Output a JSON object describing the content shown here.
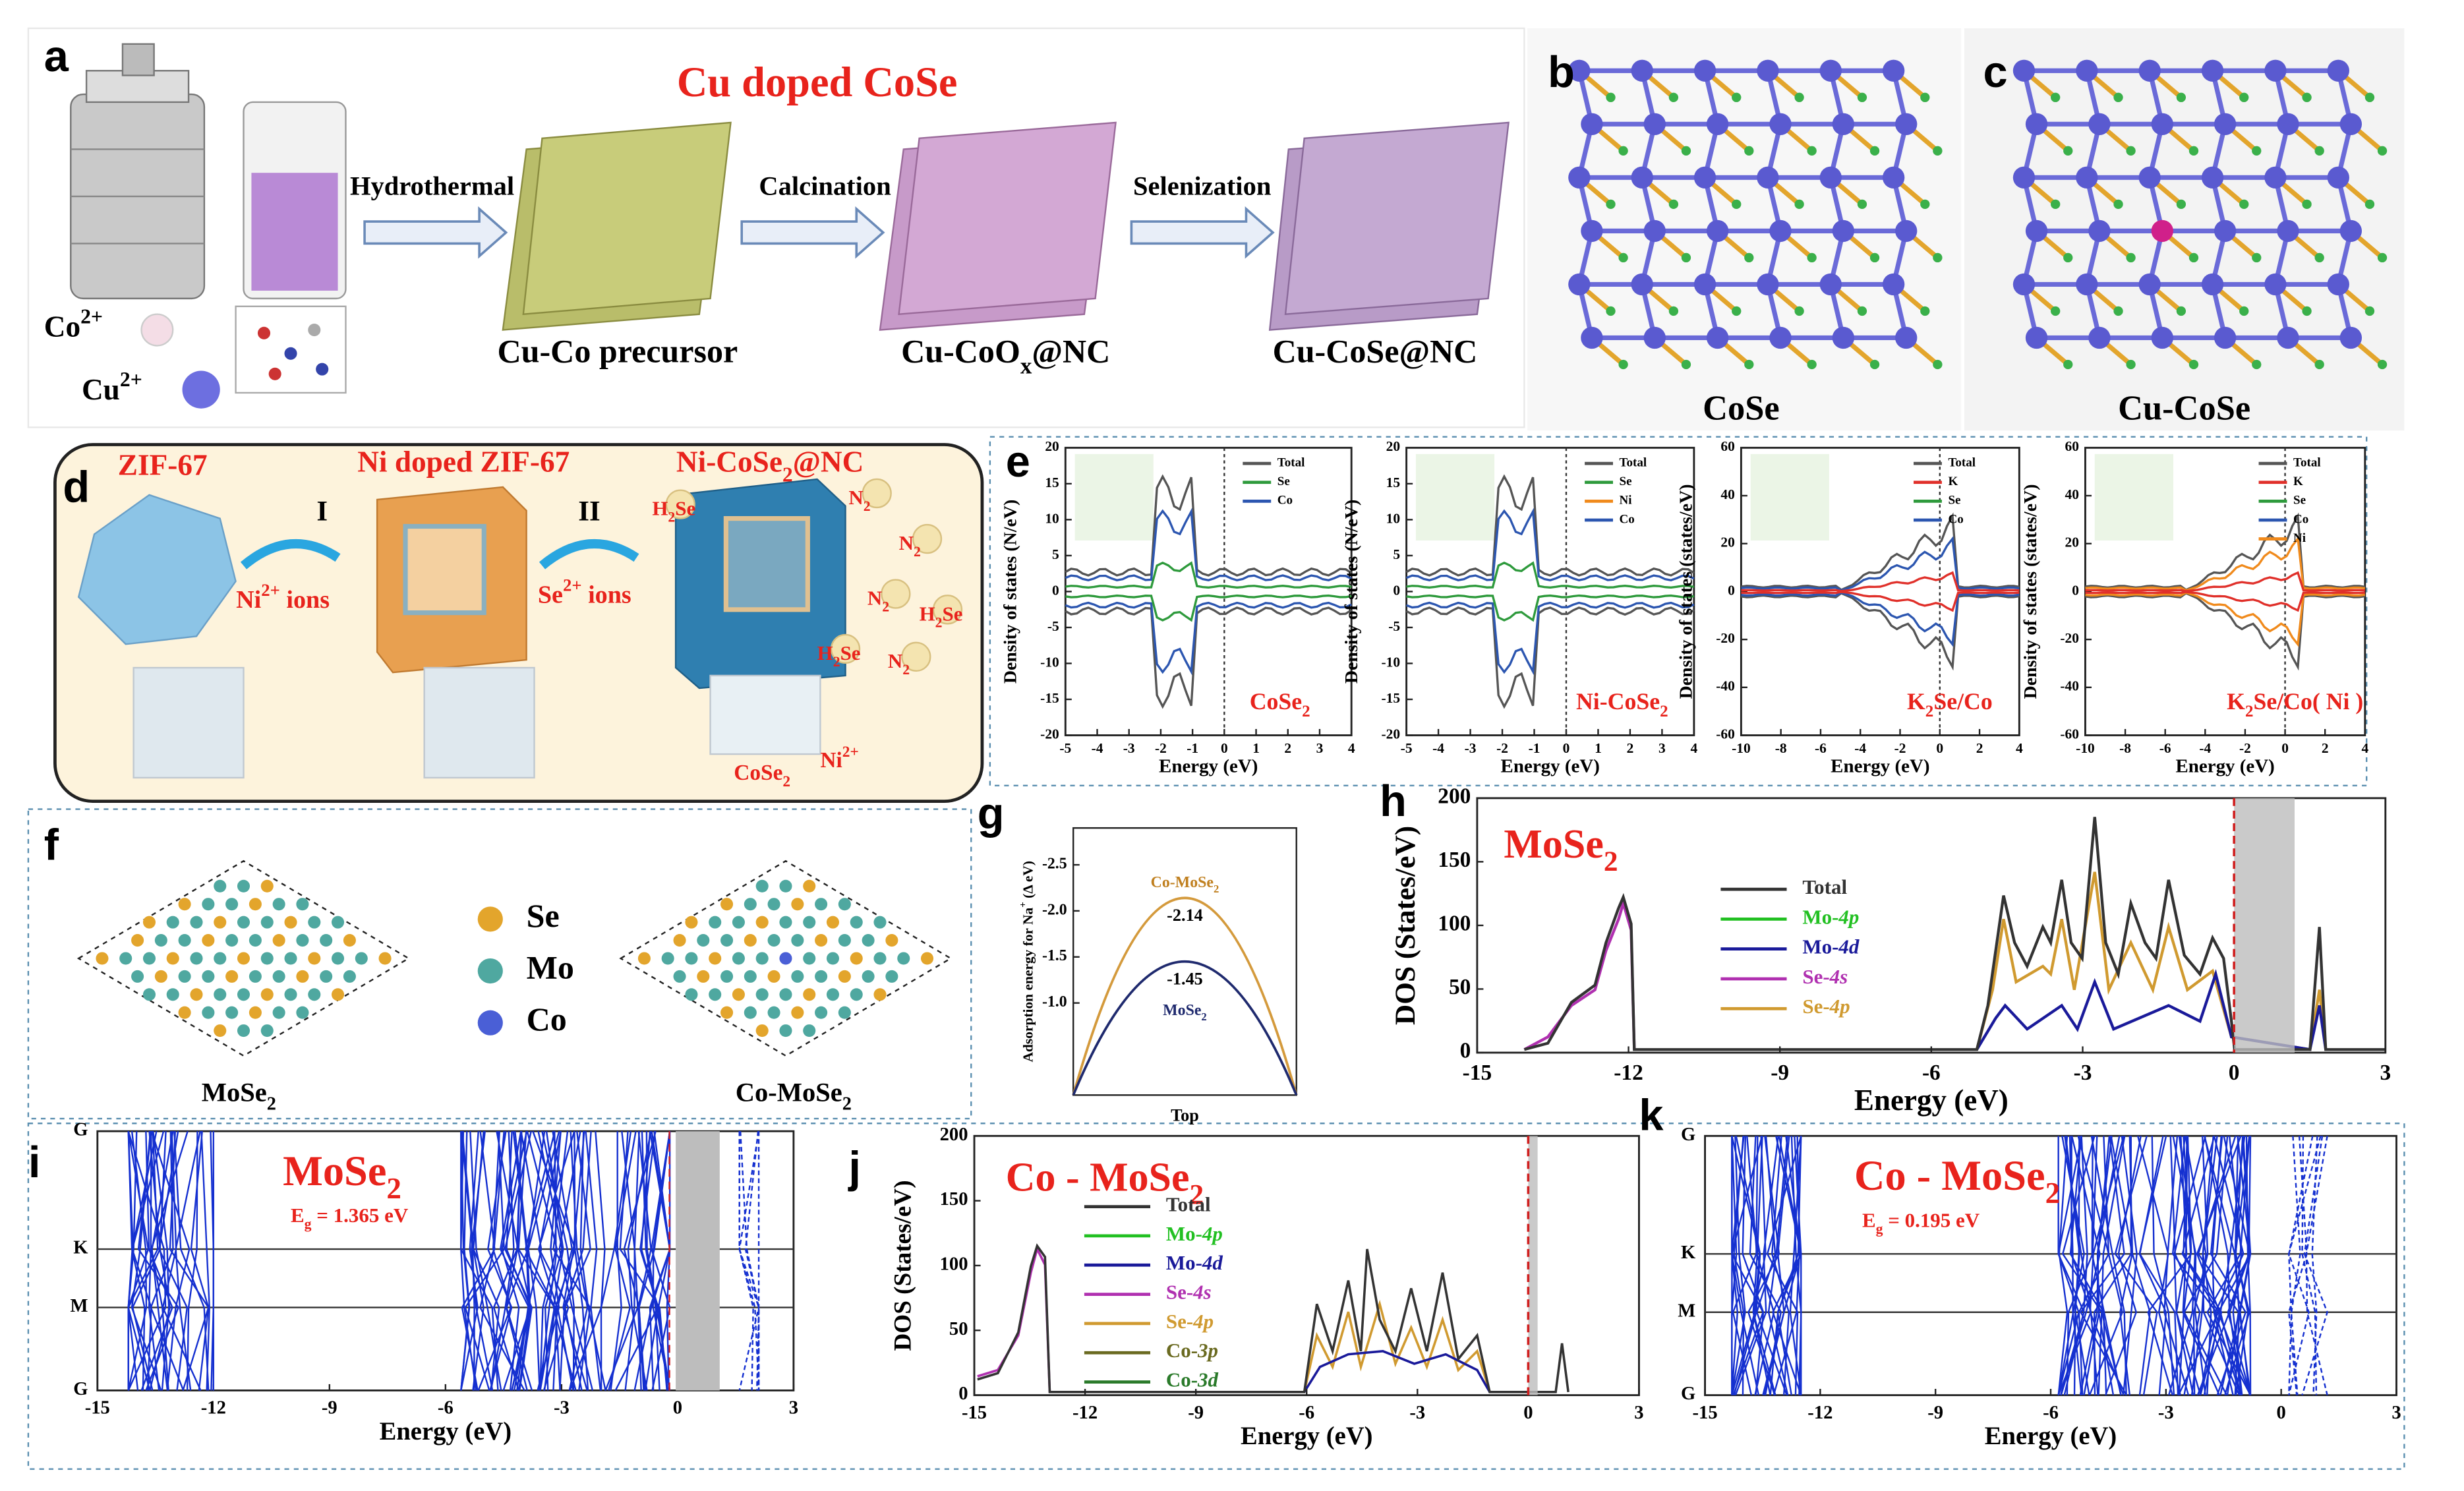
{
  "a": {
    "label": "a",
    "title": "Cu doped CoSe",
    "steps": [
      "Hydrothermal",
      "Calcination",
      "Selenization"
    ],
    "products": [
      [
        {
          "t": "Cu-Co precursor"
        }
      ],
      [
        {
          "t": "Cu-CoO"
        },
        {
          "t": "x",
          "s": "sub"
        },
        {
          "t": "@NC"
        }
      ],
      [
        {
          "t": "Cu-CoSe@NC"
        }
      ]
    ],
    "ions": [
      [
        {
          "t": "Co"
        },
        {
          "t": "2+",
          "s": "sup"
        }
      ],
      [
        {
          "t": "Cu"
        },
        {
          "t": "2+",
          "s": "sup"
        }
      ]
    ]
  },
  "b": {
    "label": "b",
    "caption": "CoSe"
  },
  "c": {
    "label": "c",
    "caption": "Cu-CoSe"
  },
  "d": {
    "label": "d",
    "stages": [
      [
        {
          "t": "ZIF-67"
        }
      ],
      [
        {
          "t": "Ni doped ZIF-67"
        }
      ],
      [
        {
          "t": "Ni-CoSe"
        },
        {
          "t": "2",
          "s": "sub"
        },
        {
          "t": "@NC"
        }
      ]
    ],
    "steps": [
      "I",
      "II"
    ],
    "ions": [
      [
        {
          "t": "Ni"
        },
        {
          "t": "2+",
          "s": "sup"
        },
        {
          "t": " ions"
        }
      ],
      [
        {
          "t": "Se"
        },
        {
          "t": "2+",
          "s": "sup"
        },
        {
          "t": " ions"
        }
      ]
    ],
    "gases": [
      [
        {
          "t": "H"
        },
        {
          "t": "2",
          "s": "sub"
        },
        {
          "t": "Se"
        }
      ],
      [
        {
          "t": "N"
        },
        {
          "t": "2",
          "s": "sub"
        }
      ],
      [
        {
          "t": "N"
        },
        {
          "t": "2",
          "s": "sub"
        }
      ],
      [
        {
          "t": "N"
        },
        {
          "t": "2",
          "s": "sub"
        }
      ],
      [
        {
          "t": "H"
        },
        {
          "t": "2",
          "s": "sub"
        },
        {
          "t": "Se"
        }
      ],
      [
        {
          "t": "H"
        },
        {
          "t": "2",
          "s": "sub"
        },
        {
          "t": "Se"
        }
      ],
      [
        {
          "t": "N"
        },
        {
          "t": "2",
          "s": "sub"
        }
      ]
    ],
    "inset": [
      {
        "t": "CoSe"
      },
      {
        "t": "2",
        "s": "sub"
      }
    ],
    "dopant": [
      {
        "t": "Ni"
      },
      {
        "t": "2+",
        "s": "sup"
      }
    ]
  },
  "e": {
    "label": "e",
    "plots": [
      {
        "name": [
          {
            "t": "CoSe"
          },
          {
            "t": "2",
            "s": "sub"
          }
        ],
        "ylabel": "Density of states (N/eV)",
        "xlabel": "Energy (eV)",
        "xlim": [
          -5,
          4
        ],
        "xticks": [
          -5,
          -4,
          -3,
          -2,
          -1,
          0,
          1,
          2,
          3,
          4
        ],
        "ylim": [
          -20,
          20
        ],
        "yticks": [
          -20,
          -15,
          -10,
          -5,
          0,
          5,
          10,
          15,
          20
        ],
        "legend": [
          {
            "name": "Total",
            "color": "#555555"
          },
          {
            "name": "Se",
            "color": "#2e9a3c"
          },
          {
            "name": "Co",
            "color": "#2c56b0"
          }
        ]
      },
      {
        "name": [
          {
            "t": "Ni-CoSe"
          },
          {
            "t": "2",
            "s": "sub"
          }
        ],
        "ylabel": "Density of states (N/eV)",
        "xlabel": "Energy (eV)",
        "xlim": [
          -5,
          4
        ],
        "xticks": [
          -5,
          -4,
          -3,
          -2,
          -1,
          0,
          1,
          2,
          3,
          4
        ],
        "ylim": [
          -20,
          20
        ],
        "yticks": [
          -20,
          -15,
          -10,
          -5,
          0,
          5,
          10,
          15,
          20
        ],
        "legend": [
          {
            "name": "Total",
            "color": "#555555"
          },
          {
            "name": "Se",
            "color": "#2e9a3c"
          },
          {
            "name": "Ni",
            "color": "#f08a1c"
          },
          {
            "name": "Co",
            "color": "#2c56b0"
          }
        ]
      },
      {
        "name": [
          {
            "t": "K"
          },
          {
            "t": "2",
            "s": "sub"
          },
          {
            "t": "Se/Co"
          }
        ],
        "ylabel": "Density of states (states/eV)",
        "xlabel": "Energy (eV)",
        "xlim": [
          -10,
          4
        ],
        "xticks": [
          -10,
          -8,
          -6,
          -4,
          -2,
          0,
          2,
          4
        ],
        "ylim": [
          -60,
          60
        ],
        "yticks": [
          -60,
          -40,
          -20,
          0,
          20,
          40,
          60
        ],
        "legend": [
          {
            "name": "Total",
            "color": "#555555"
          },
          {
            "name": "K",
            "color": "#e0302a"
          },
          {
            "name": "Se",
            "color": "#2e9a3c"
          },
          {
            "name": "Co",
            "color": "#2c56b0"
          }
        ]
      },
      {
        "name": [
          {
            "t": "K"
          },
          {
            "t": "2",
            "s": "sub"
          },
          {
            "t": "Se/Co( Ni )"
          }
        ],
        "ylabel": "Density of states (states/eV)",
        "xlabel": "Energy (eV)",
        "xlim": [
          -10,
          4
        ],
        "xticks": [
          -10,
          -8,
          -6,
          -4,
          -2,
          0,
          2,
          4
        ],
        "ylim": [
          -60,
          60
        ],
        "yticks": [
          -60,
          -40,
          -20,
          0,
          20,
          40,
          60
        ],
        "legend": [
          {
            "name": "Total",
            "color": "#555555"
          },
          {
            "name": "K",
            "color": "#e0302a"
          },
          {
            "name": "Se",
            "color": "#2e9a3c"
          },
          {
            "name": "Co",
            "color": "#2c56b0"
          },
          {
            "name": "Ni",
            "color": "#f08a1c"
          }
        ]
      }
    ]
  },
  "f": {
    "label": "f",
    "legend": [
      {
        "name": "Se",
        "color": "#e3a52c"
      },
      {
        "name": "Mo",
        "color": "#4fa8a0"
      },
      {
        "name": "Co",
        "color": "#4a5fd6"
      }
    ],
    "captions": [
      [
        {
          "t": "MoSe"
        },
        {
          "t": "2",
          "s": "sub"
        }
      ],
      [
        {
          "t": "Co-MoSe"
        },
        {
          "t": "2",
          "s": "sub"
        }
      ]
    ]
  },
  "g": {
    "label": "g",
    "ylabel": [
      {
        "t": "Adsorption energy for Na"
      },
      {
        "t": "+",
        "s": "sup"
      },
      {
        "t": " (Δ eV)"
      }
    ],
    "xlabel": "Top",
    "ylim": [
      -2.9,
      0
    ],
    "yticks": [
      -2.5,
      {
        "value": -2.0,
        "label": "-2.0"
      },
      -1.5,
      {
        "value": -1.0,
        "label": "-1.0"
      }
    ],
    "series": [
      {
        "name": [
          {
            "t": "Co-MoSe"
          },
          {
            "t": "2",
            "s": "sub"
          }
        ],
        "value": -2.14,
        "color": "#d49a3c"
      },
      {
        "name": [
          {
            "t": "MoSe"
          },
          {
            "t": "2",
            "s": "sub"
          }
        ],
        "value": -1.45,
        "color": "#1f2a6e"
      }
    ]
  },
  "h": {
    "label": "h",
    "title": [
      {
        "t": "MoSe"
      },
      {
        "t": "2",
        "s": "sub"
      }
    ],
    "ylabel": "DOS (States/eV)",
    "xlabel": "Energy (eV)",
    "xlim": [
      -15,
      3
    ],
    "xticks": [
      -15,
      -12,
      -9,
      -6,
      -3,
      0,
      3
    ],
    "ylim": [
      0,
      200
    ],
    "yticks": [
      0,
      50,
      100,
      150,
      200
    ],
    "legend": [
      {
        "name": [
          {
            "t": "Total"
          }
        ],
        "color": "#333333"
      },
      {
        "name": [
          {
            "t": "Mo-"
          },
          {
            "t": "4p",
            "s": "i"
          }
        ],
        "color": "#22c022"
      },
      {
        "name": [
          {
            "t": "Mo-"
          },
          {
            "t": "4d",
            "s": "i"
          }
        ],
        "color": "#1a1a9a"
      },
      {
        "name": [
          {
            "t": "Se-"
          },
          {
            "t": "4s",
            "s": "i"
          }
        ],
        "color": "#b030b0"
      },
      {
        "name": [
          {
            "t": "Se-"
          },
          {
            "t": "4p",
            "s": "i"
          }
        ],
        "color": "#d09a30"
      }
    ]
  },
  "i": {
    "label": "i",
    "title": [
      {
        "t": "MoSe"
      },
      {
        "t": "2",
        "s": "sub"
      }
    ],
    "gap": [
      {
        "t": "E"
      },
      {
        "t": "g",
        "s": "sub"
      },
      {
        "t": " = 1.365 eV"
      }
    ],
    "kpoints": [
      "G",
      "K",
      "M",
      "G"
    ],
    "xlabel": "Energy (eV)",
    "xlim": [
      -15,
      3
    ],
    "xticks": [
      -15,
      -12,
      -9,
      -6,
      -3,
      0,
      3
    ]
  },
  "j": {
    "label": "j",
    "title": [
      {
        "t": "Co - MoSe"
      },
      {
        "t": "2",
        "s": "sub"
      }
    ],
    "ylabel": "DOS (States/eV)",
    "xlabel": "Energy (eV)",
    "xlim": [
      -15,
      3
    ],
    "xticks": [
      -15,
      -12,
      -9,
      -6,
      -3,
      0,
      3
    ],
    "ylim": [
      0,
      200
    ],
    "yticks": [
      0,
      50,
      100,
      150,
      200
    ],
    "legend": [
      {
        "name": [
          {
            "t": "Total"
          }
        ],
        "color": "#333333"
      },
      {
        "name": [
          {
            "t": "Mo-"
          },
          {
            "t": "4p",
            "s": "i"
          }
        ],
        "color": "#22c022"
      },
      {
        "name": [
          {
            "t": "Mo-"
          },
          {
            "t": "4d",
            "s": "i"
          }
        ],
        "color": "#1a1a9a"
      },
      {
        "name": [
          {
            "t": "Se-"
          },
          {
            "t": "4s",
            "s": "i"
          }
        ],
        "color": "#b030b0"
      },
      {
        "name": [
          {
            "t": "Se-"
          },
          {
            "t": "4p",
            "s": "i"
          }
        ],
        "color": "#d09a30"
      },
      {
        "name": [
          {
            "t": "Co-"
          },
          {
            "t": "3p",
            "s": "i"
          }
        ],
        "color": "#6a6a20"
      },
      {
        "name": [
          {
            "t": "Co-"
          },
          {
            "t": "3d",
            "s": "i"
          }
        ],
        "color": "#2a7a2a"
      }
    ]
  },
  "k": {
    "label": "k",
    "title": [
      {
        "t": "Co - MoSe"
      },
      {
        "t": "2",
        "s": "sub"
      }
    ],
    "gap": [
      {
        "t": "E"
      },
      {
        "t": "g",
        "s": "sub"
      },
      {
        "t": " = 0.195 eV"
      }
    ],
    "kpoints": [
      "G",
      "K",
      "M",
      "G"
    ],
    "xlabel": "Energy (eV)",
    "xlim": [
      -15,
      3
    ],
    "xticks": [
      -15,
      -12,
      -9,
      -6,
      -3,
      0,
      3
    ]
  }
}
